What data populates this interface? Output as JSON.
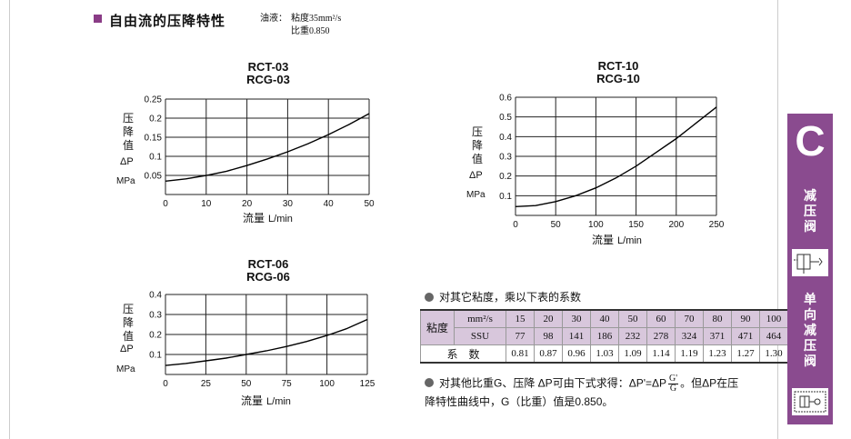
{
  "header": {
    "title": "自由流的压降特性",
    "oil_label": "油液：",
    "oil_line1": "粘度35mm²/s",
    "oil_line2": "比重0.850"
  },
  "axis_common": {
    "y_label": [
      "压",
      "降",
      "值"
    ],
    "y_symbol": "ΔP",
    "y_unit": "MPa",
    "x_label": "流量",
    "x_unit": "L/min"
  },
  "chart_data": [
    {
      "type": "line",
      "title": [
        "RCT-03",
        "RCG-03"
      ],
      "xlabel": "流量 L/min",
      "ylabel": "压降值 ΔP MPa",
      "xlim": [
        0,
        50
      ],
      "ylim": [
        0,
        0.25
      ],
      "xticks": [
        "0",
        "10",
        "20",
        "30",
        "40",
        "50"
      ],
      "yticks": [
        "0.05",
        "0.1",
        "0.15",
        "0.2",
        "0.25"
      ],
      "grid": true,
      "series": [
        {
          "x": [
            0,
            5,
            10,
            15,
            20,
            25,
            30,
            35,
            40,
            45,
            50
          ],
          "y": [
            0.035,
            0.041,
            0.05,
            0.061,
            0.076,
            0.093,
            0.112,
            0.133,
            0.157,
            0.183,
            0.212
          ]
        }
      ]
    },
    {
      "type": "line",
      "title": [
        "RCT-10",
        "RCG-10"
      ],
      "xlabel": "流量 L/min",
      "ylabel": "压降值 ΔP MPa",
      "xlim": [
        0,
        250
      ],
      "ylim": [
        0,
        0.6
      ],
      "xticks": [
        "0",
        "50",
        "100",
        "150",
        "200",
        "250"
      ],
      "yticks": [
        "0.1",
        "0.2",
        "0.3",
        "0.4",
        "0.5",
        "0.6"
      ],
      "grid": true,
      "series": [
        {
          "x": [
            0,
            25,
            50,
            75,
            100,
            125,
            150,
            175,
            200,
            225,
            250
          ],
          "y": [
            0.045,
            0.05,
            0.07,
            0.1,
            0.14,
            0.19,
            0.25,
            0.32,
            0.39,
            0.47,
            0.55
          ]
        }
      ]
    },
    {
      "type": "line",
      "title": [
        "RCT-06",
        "RCG-06"
      ],
      "xlabel": "流量 L/min",
      "ylabel": "压降值 ΔP MPa",
      "xlim": [
        0,
        125
      ],
      "ylim": [
        0,
        0.4
      ],
      "xticks": [
        "0",
        "25",
        "50",
        "75",
        "100",
        "125"
      ],
      "yticks": [
        "0.1",
        "0.2",
        "0.3",
        "0.4"
      ],
      "grid": true,
      "series": [
        {
          "x": [
            0,
            12.5,
            25,
            37.5,
            50,
            62.5,
            75,
            87.5,
            100,
            112.5,
            125
          ],
          "y": [
            0.045,
            0.055,
            0.068,
            0.082,
            0.1,
            0.118,
            0.14,
            0.165,
            0.195,
            0.23,
            0.275
          ]
        }
      ]
    }
  ],
  "viscosity": {
    "note": "对其它粘度，乘以下表的系数",
    "row_header": "粘度",
    "unit_mm": "mm²/s",
    "unit_ssu": "SSU",
    "mm2s": [
      "15",
      "20",
      "30",
      "40",
      "50",
      "60",
      "70",
      "80",
      "90",
      "100"
    ],
    "ssu": [
      "77",
      "98",
      "141",
      "186",
      "232",
      "278",
      "324",
      "371",
      "471",
      "464"
    ],
    "coef_label": "系　数",
    "coef": [
      "0.81",
      "0.87",
      "0.96",
      "1.03",
      "1.09",
      "1.14",
      "1.19",
      "1.23",
      "1.27",
      "1.30"
    ]
  },
  "formula": {
    "pre": "对其他比重G、压降 ΔP可由下式求得：ΔP'=ΔP",
    "num": "G'",
    "den": "G",
    "post": "。但ΔP在压",
    "line2": "降特性曲线中，G（比重）值是0.850。"
  },
  "sidebar": {
    "letter": "C",
    "text1": [
      "减",
      "压",
      "阀"
    ],
    "text2": [
      "单",
      "向",
      "减",
      "压",
      "阀"
    ]
  },
  "colors": {
    "accent": "#8a4b8f",
    "table_shade": "#d8c7dc"
  }
}
